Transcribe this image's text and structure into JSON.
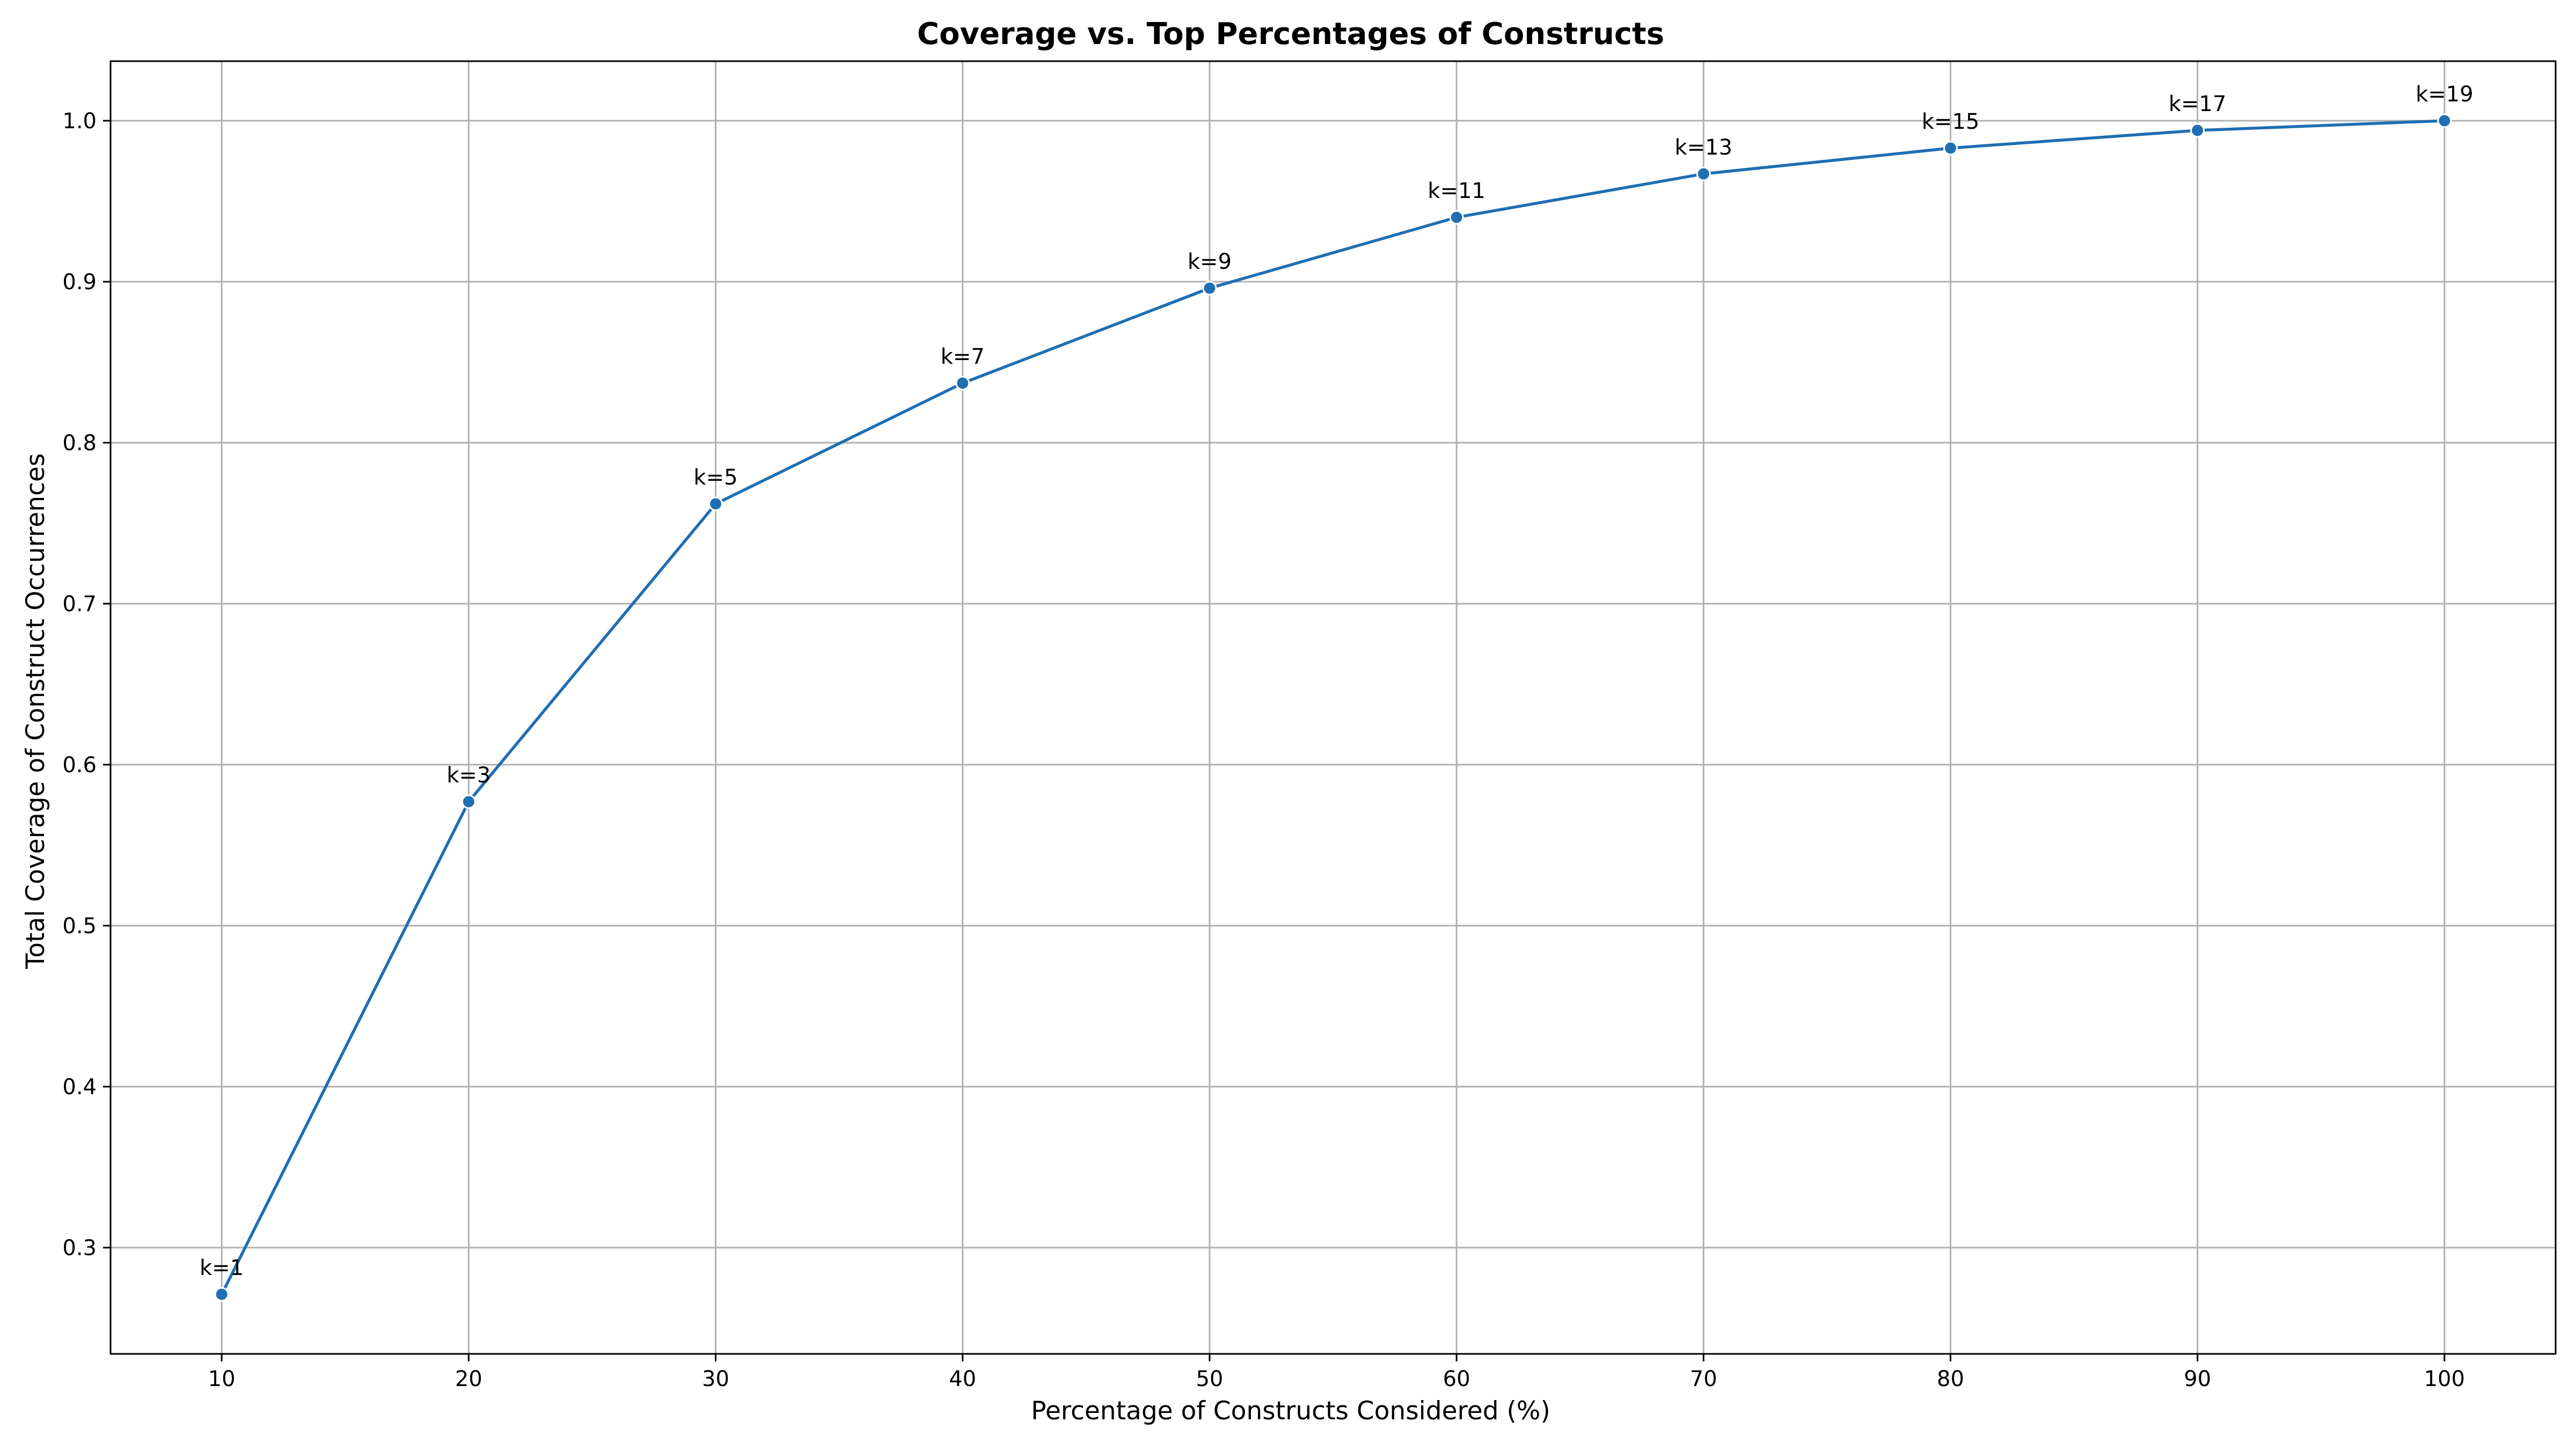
{
  "chart_data": {
    "type": "line",
    "title": "Coverage vs. Top Percentages of Constructs",
    "xlabel": "Percentage of Constructs Considered (%)",
    "ylabel": "Total Coverage of Construct Occurrences",
    "x": [
      10,
      20,
      30,
      40,
      50,
      60,
      70,
      80,
      90,
      100
    ],
    "series": [
      {
        "values": [
          0.271,
          0.577,
          0.762,
          0.837,
          0.896,
          0.94,
          0.967,
          0.983,
          0.994,
          1.0
        ]
      }
    ],
    "point_labels": [
      "k=1",
      "k=3",
      "k=5",
      "k=7",
      "k=9",
      "k=11",
      "k=13",
      "k=15",
      "k=17",
      "k=19"
    ],
    "xticks": [
      10,
      20,
      30,
      40,
      50,
      60,
      70,
      80,
      90,
      100
    ],
    "yticks": [
      0.3,
      0.4,
      0.5,
      0.6,
      0.7,
      0.8,
      0.9,
      1.0
    ],
    "ytick_labels": [
      "0.3",
      "0.4",
      "0.5",
      "0.6",
      "0.7",
      "0.8",
      "0.9",
      "1.0"
    ],
    "xlim": [
      5.5,
      104.5
    ],
    "ylim": [
      0.234,
      1.037
    ],
    "grid": true,
    "line_color": "#1f6fb2",
    "grid_color": "#b0b0b0"
  }
}
